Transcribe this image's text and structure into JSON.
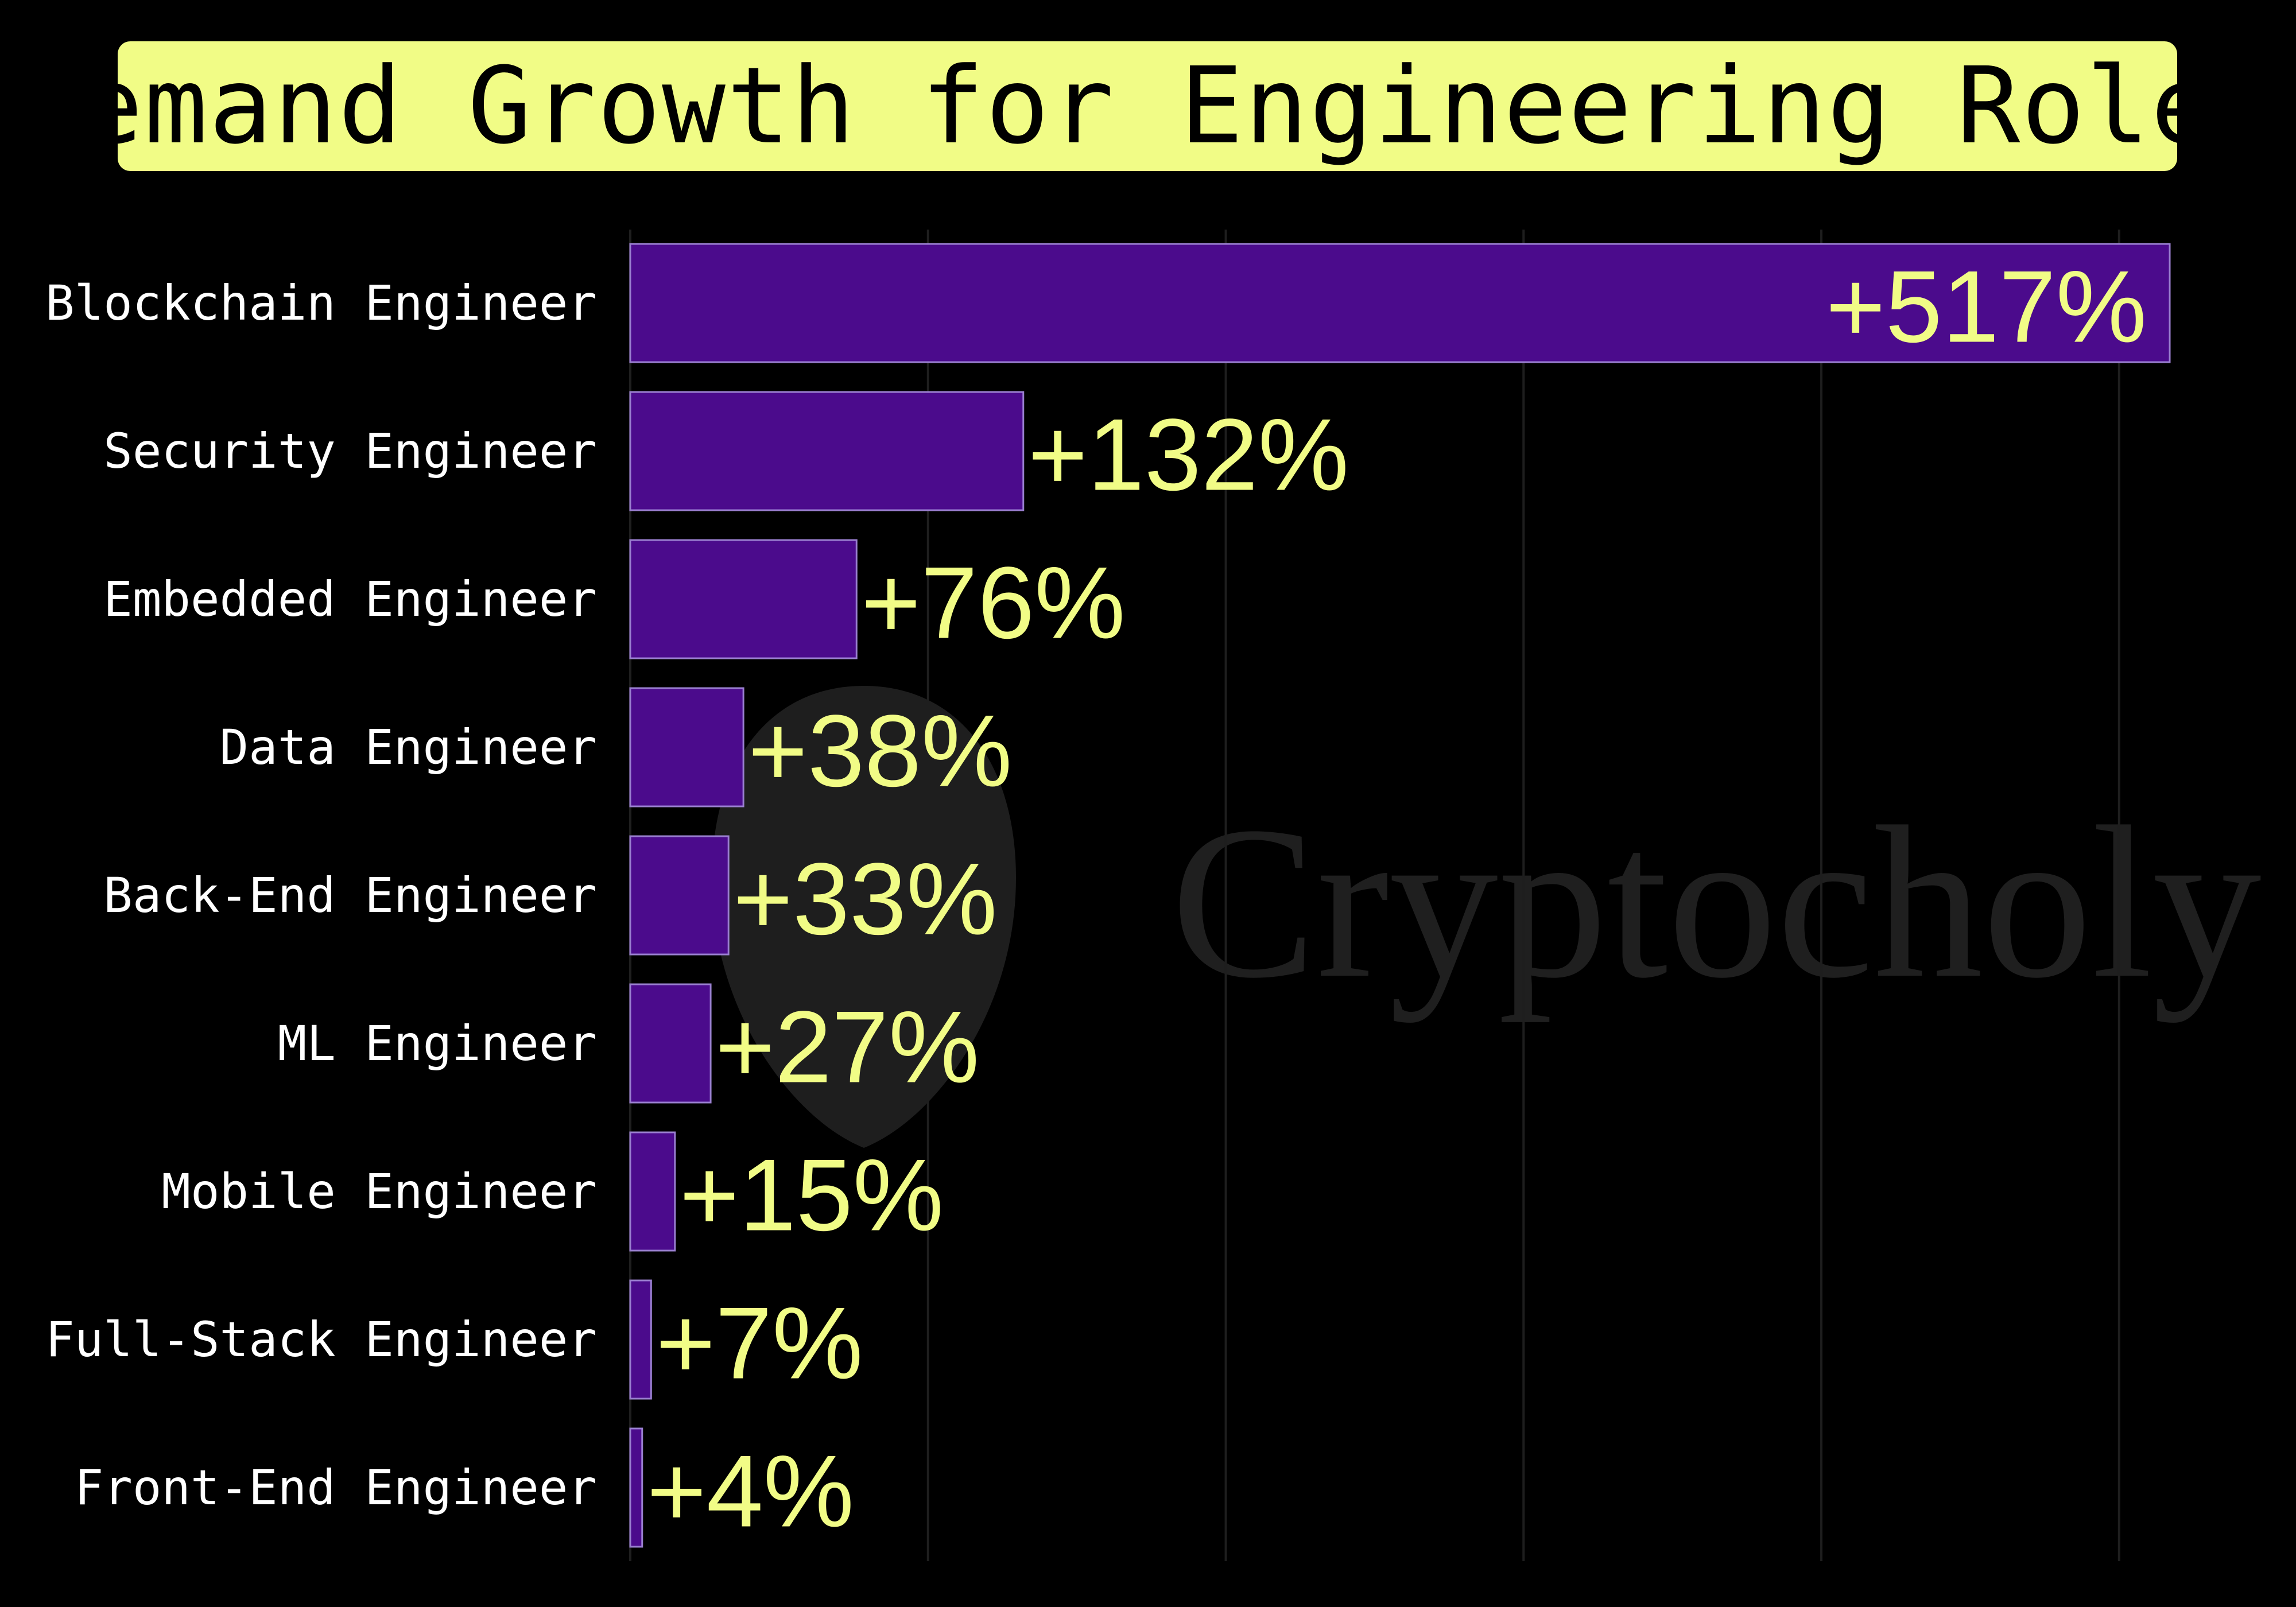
{
  "watermark": {
    "text": "Cryptocholy"
  },
  "colors": {
    "background": "#000000",
    "bar": "#4B0B8C",
    "bar_edge": "#9A7FD0",
    "value_text": "#F1FC86",
    "title_box": "#F1FC86",
    "grid": "#1e1e1e"
  },
  "chart_data": {
    "type": "bar",
    "orientation": "horizontal",
    "title": "Demand Growth for Engineering Roles",
    "categories": [
      "Blockchain Engineer",
      "Security Engineer",
      "Embedded Engineer",
      "Data Engineer",
      "Back-End Engineer",
      "ML Engineer",
      "Mobile Engineer",
      "Full-Stack Engineer",
      "Front-End Engineer"
    ],
    "values": [
      517,
      132,
      76,
      38,
      33,
      27,
      15,
      7,
      4
    ],
    "value_labels": [
      "+517%",
      "+132%",
      "+76%",
      "+38%",
      "+33%",
      "+27%",
      "+15%",
      "+7%",
      "+4%"
    ],
    "xlim": [
      0,
      517
    ],
    "x_grid_step": 100,
    "grid": true,
    "legend": false
  }
}
